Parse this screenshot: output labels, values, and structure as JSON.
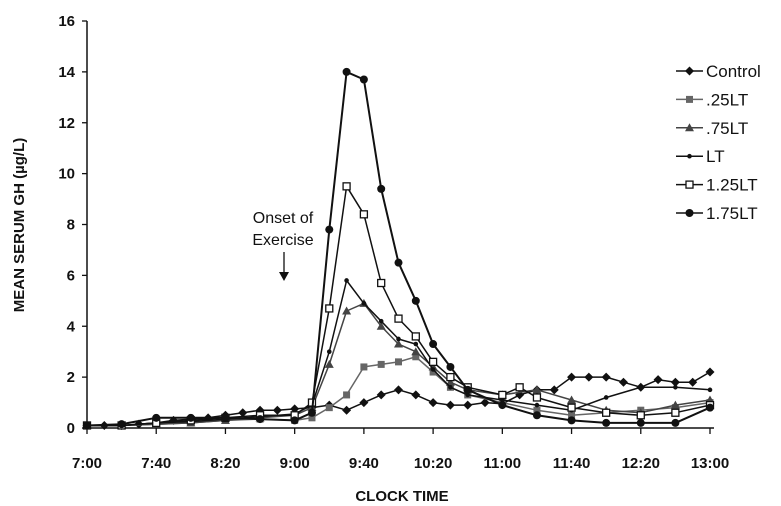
{
  "chart_data": {
    "type": "line",
    "title": "",
    "xlabel": "CLOCK TIME",
    "ylabel": "MEAN SERUM GH (µg/L)",
    "ylim": [
      0,
      16
    ],
    "yticks": [
      0,
      2,
      4,
      6,
      8,
      10,
      12,
      14,
      16
    ],
    "xlim": [
      "7:00",
      "13:00"
    ],
    "xtick_labels": [
      "7:00",
      "7:40",
      "8:20",
      "9:00",
      "9:40",
      "10:20",
      "11:00",
      "11:40",
      "12:20",
      "13:00"
    ],
    "legend_position": "right",
    "grid": false,
    "annotation": {
      "lines": [
        "Onset of",
        "Exercise"
      ],
      "x": "9:00"
    },
    "series": [
      {
        "name": "Control",
        "marker": "diamond",
        "color": "#111111",
        "x": [
          "7:00",
          "7:10",
          "7:20",
          "7:30",
          "7:40",
          "7:50",
          "8:00",
          "8:10",
          "8:20",
          "8:30",
          "8:40",
          "8:50",
          "9:00",
          "9:10",
          "9:20",
          "9:30",
          "9:40",
          "9:50",
          "10:00",
          "10:10",
          "10:20",
          "10:30",
          "10:40",
          "10:50",
          "11:00",
          "11:10",
          "11:20",
          "11:30",
          "11:40",
          "11:50",
          "12:00",
          "12:10",
          "12:20",
          "12:30",
          "12:40",
          "12:50",
          "13:00"
        ],
        "values": [
          0.1,
          0.1,
          0.1,
          0.15,
          0.2,
          0.3,
          0.35,
          0.4,
          0.5,
          0.6,
          0.7,
          0.7,
          0.75,
          0.8,
          0.9,
          0.7,
          1.0,
          1.3,
          1.5,
          1.3,
          1.0,
          0.9,
          0.9,
          1.0,
          0.95,
          1.3,
          1.5,
          1.5,
          2.0,
          2.0,
          2.0,
          1.8,
          1.6,
          1.9,
          1.8,
          1.8,
          2.2
        ]
      },
      {
        "name": ".25LT",
        "marker": "square",
        "color": "#666666",
        "x": [
          "7:00",
          "7:20",
          "7:40",
          "8:00",
          "8:20",
          "8:40",
          "9:00",
          "9:10",
          "9:20",
          "9:30",
          "9:40",
          "9:50",
          "10:00",
          "10:10",
          "10:20",
          "10:30",
          "10:40",
          "11:00",
          "11:20",
          "11:40",
          "12:00",
          "12:20",
          "12:40",
          "13:00"
        ],
        "values": [
          0.1,
          0.1,
          0.15,
          0.2,
          0.3,
          0.35,
          0.3,
          0.4,
          0.8,
          1.3,
          2.4,
          2.5,
          2.6,
          2.8,
          2.2,
          1.6,
          1.3,
          1.0,
          0.7,
          0.5,
          0.6,
          0.7,
          0.8,
          1.0
        ]
      },
      {
        "name": ".75LT",
        "marker": "triangle",
        "color": "#444444",
        "x": [
          "7:00",
          "7:20",
          "7:40",
          "8:00",
          "8:20",
          "8:40",
          "9:00",
          "9:10",
          "9:20",
          "9:30",
          "9:40",
          "9:50",
          "10:00",
          "10:10",
          "10:20",
          "10:30",
          "10:40",
          "11:00",
          "11:20",
          "11:40",
          "12:00",
          "12:20",
          "12:40",
          "13:00"
        ],
        "values": [
          0.1,
          0.1,
          0.15,
          0.2,
          0.3,
          0.4,
          0.5,
          0.8,
          2.5,
          4.6,
          4.9,
          4.0,
          3.3,
          3.0,
          2.4,
          1.8,
          1.5,
          1.3,
          1.5,
          1.1,
          0.7,
          0.6,
          0.9,
          1.1
        ]
      },
      {
        "name": "LT",
        "marker": "dot",
        "color": "#111111",
        "x": [
          "7:00",
          "7:20",
          "7:40",
          "8:00",
          "8:20",
          "8:40",
          "9:00",
          "9:10",
          "9:20",
          "9:30",
          "9:40",
          "9:50",
          "10:00",
          "10:10",
          "10:20",
          "10:30",
          "10:40",
          "11:00",
          "11:20",
          "11:40",
          "12:00",
          "12:20",
          "12:40",
          "13:00"
        ],
        "values": [
          0.1,
          0.1,
          0.2,
          0.25,
          0.35,
          0.45,
          0.55,
          0.9,
          3.0,
          5.8,
          4.9,
          4.2,
          3.5,
          3.3,
          2.3,
          1.6,
          1.3,
          1.1,
          0.9,
          0.7,
          1.2,
          1.6,
          1.6,
          1.5
        ]
      },
      {
        "name": "1.25LT",
        "marker": "open-square",
        "color": "#111111",
        "x": [
          "7:00",
          "7:20",
          "7:40",
          "8:00",
          "8:20",
          "8:40",
          "9:00",
          "9:10",
          "9:20",
          "9:30",
          "9:40",
          "9:50",
          "10:00",
          "10:10",
          "10:20",
          "10:30",
          "10:40",
          "11:00",
          "11:10",
          "11:20",
          "11:40",
          "12:00",
          "12:20",
          "12:40",
          "13:00"
        ],
        "values": [
          0.1,
          0.1,
          0.2,
          0.3,
          0.4,
          0.5,
          0.5,
          1.0,
          4.7,
          9.5,
          8.4,
          5.7,
          4.3,
          3.6,
          2.6,
          2.0,
          1.6,
          1.3,
          1.6,
          1.2,
          0.8,
          0.6,
          0.5,
          0.6,
          0.9
        ]
      },
      {
        "name": "1.75LT",
        "marker": "circle",
        "color": "#111111",
        "x": [
          "7:00",
          "7:20",
          "7:40",
          "8:00",
          "8:20",
          "8:40",
          "9:00",
          "9:10",
          "9:20",
          "9:30",
          "9:40",
          "9:50",
          "10:00",
          "10:10",
          "10:20",
          "10:30",
          "10:40",
          "11:00",
          "11:20",
          "11:40",
          "12:00",
          "12:20",
          "12:40",
          "13:00"
        ],
        "values": [
          0.1,
          0.15,
          0.4,
          0.4,
          0.4,
          0.35,
          0.3,
          0.6,
          7.8,
          14.0,
          13.7,
          9.4,
          6.5,
          5.0,
          3.3,
          2.4,
          1.5,
          0.9,
          0.5,
          0.3,
          0.2,
          0.2,
          0.2,
          0.8
        ]
      }
    ]
  }
}
